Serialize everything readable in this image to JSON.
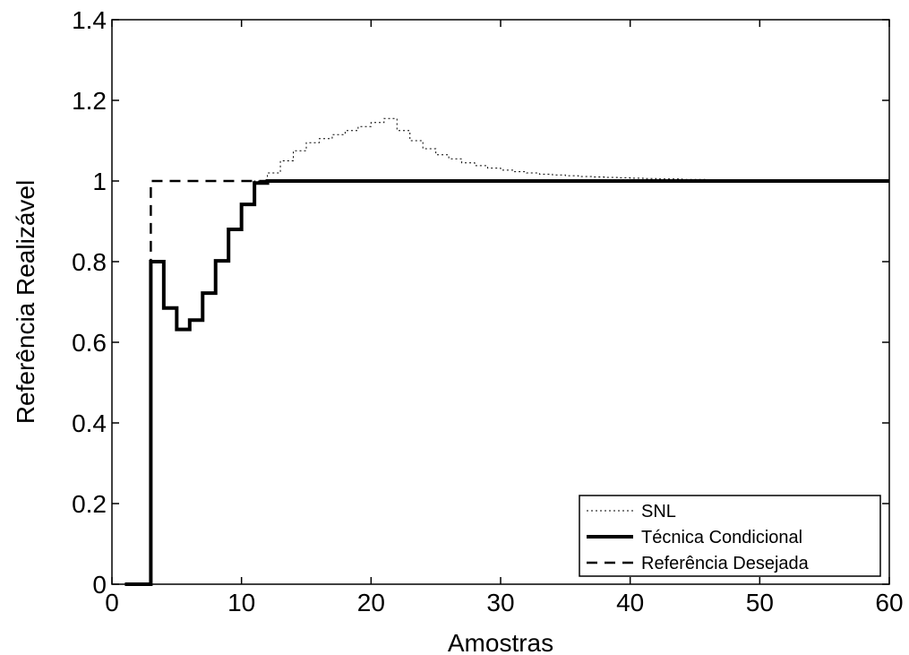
{
  "chart_data": {
    "type": "line",
    "title": "",
    "xlabel": "Amostras",
    "ylabel": "Referência Realizável",
    "xlim": [
      0,
      60
    ],
    "ylim": [
      0,
      1.4
    ],
    "xticks": [
      0,
      10,
      20,
      30,
      40,
      50,
      60
    ],
    "xtick_labels": [
      "0",
      "10",
      "20",
      "30",
      "40",
      "50",
      "60"
    ],
    "yticks": [
      0,
      0.2,
      0.4,
      0.6,
      0.8,
      1,
      1.2,
      1.4
    ],
    "ytick_labels": [
      "0",
      "0.2",
      "0.4",
      "0.6",
      "0.8",
      "1",
      "1.2",
      "1.4"
    ],
    "grid": false,
    "legend_position": "bottom-right",
    "series": [
      {
        "name": "SNL",
        "style": "dotted",
        "line_width": 1,
        "color": "#000000",
        "step": true,
        "x": [
          1,
          2,
          3,
          4,
          5,
          6,
          7,
          8,
          9,
          10,
          11,
          12,
          13,
          14,
          15,
          16,
          17,
          18,
          19,
          20,
          21,
          22,
          23,
          24,
          25,
          26,
          27,
          28,
          29,
          30,
          31,
          32,
          33,
          34,
          35,
          36,
          37,
          38,
          39,
          40,
          41,
          42,
          43,
          44,
          45,
          46,
          47,
          48,
          49,
          50,
          51,
          52,
          53,
          54,
          55,
          56,
          57,
          58,
          59,
          60
        ],
        "y": [
          0,
          0,
          0.8,
          0.685,
          0.632,
          0.655,
          0.722,
          0.802,
          0.88,
          0.942,
          1.0,
          1.02,
          1.05,
          1.075,
          1.095,
          1.105,
          1.115,
          1.125,
          1.135,
          1.145,
          1.155,
          1.125,
          1.1,
          1.08,
          1.065,
          1.055,
          1.045,
          1.038,
          1.032,
          1.027,
          1.023,
          1.02,
          1.017,
          1.015,
          1.013,
          1.011,
          1.01,
          1.009,
          1.008,
          1.007,
          1.006,
          1.005,
          1.005,
          1.004,
          1.004,
          1.003,
          1.003,
          1.002,
          1.002,
          1.002,
          1.001,
          1.001,
          1.001,
          1.001,
          1.0,
          1.0,
          1.0,
          1.0,
          1.0,
          1.0
        ]
      },
      {
        "name": "Técnica Condicional",
        "style": "solid",
        "line_width": 4,
        "color": "#000000",
        "step": true,
        "x": [
          1,
          2,
          3,
          4,
          5,
          6,
          7,
          8,
          9,
          10,
          11,
          12,
          60
        ],
        "y": [
          0,
          0,
          0.8,
          0.685,
          0.632,
          0.655,
          0.722,
          0.802,
          0.88,
          0.942,
          0.995,
          1.0,
          1.0
        ]
      },
      {
        "name": "Referência Desejada",
        "style": "dashed",
        "line_width": 2.5,
        "color": "#000000",
        "step": true,
        "x": [
          1,
          2,
          3,
          60
        ],
        "y": [
          0,
          0,
          1.0,
          1.0
        ]
      }
    ]
  }
}
